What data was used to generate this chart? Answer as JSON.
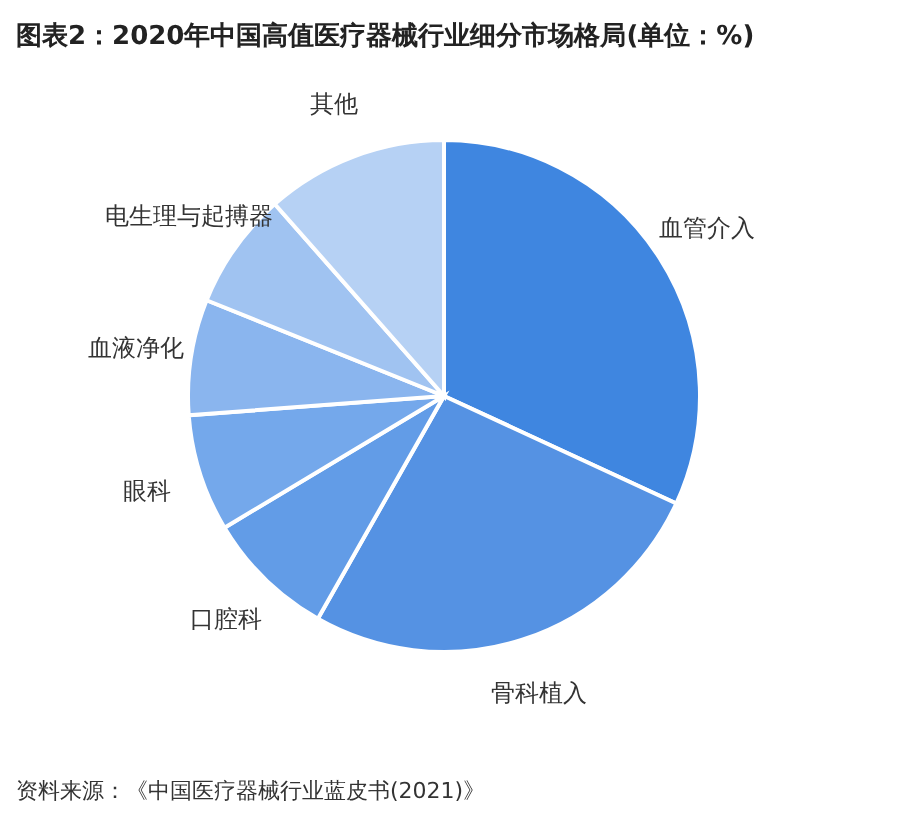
{
  "chart_data": {
    "type": "pie",
    "title": "图表2：2020年中国高值医疗器械行业细分市场格局(单位：%)",
    "categories": [
      "血管介入",
      "骨科植入",
      "口腔科",
      "眼科",
      "血液净化",
      "电生理与起搏器",
      "其他"
    ],
    "values": [
      31.9,
      26.3,
      8.2,
      7.4,
      7.3,
      7.4,
      11.5
    ],
    "colors": [
      "#3f86e0",
      "#5592e3",
      "#629ce7",
      "#74a8eb",
      "#8ab5ee",
      "#a0c3f1",
      "#b6d1f4"
    ],
    "annotations": [
      "资料来源：《中国医疗器械行业蓝皮书(2021)》"
    ]
  }
}
